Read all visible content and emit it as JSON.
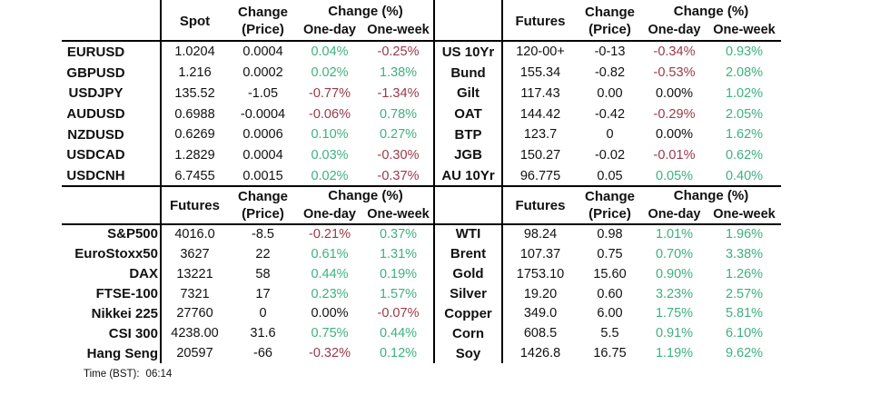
{
  "colors": {
    "positive": "#3eb181",
    "negative": "#97394a",
    "neutral": "#111111"
  },
  "headers": {
    "change_line1": "Change",
    "change_line2": "(Price)",
    "change_pct": "Change (%)",
    "one_day": "One-day",
    "one_week": "One-week"
  },
  "footer": {
    "time_label": "Time (BST):",
    "time_value": "06:14"
  },
  "chart_data": [
    {
      "type": "table",
      "title": "FX spot rates",
      "value_header": "Spot",
      "columns": [
        "",
        "Spot",
        "Change (Price)",
        "One-day",
        "One-week"
      ],
      "rows": [
        {
          "label": "EURUSD",
          "value": "1.0204",
          "change": "0.0004",
          "one_day": "0.04%",
          "one_week": "-0.25%"
        },
        {
          "label": "GBPUSD",
          "value": "1.216",
          "change": "0.0002",
          "one_day": "0.02%",
          "one_week": "1.38%"
        },
        {
          "label": "USDJPY",
          "value": "135.52",
          "change": "-1.05",
          "one_day": "-0.77%",
          "one_week": "-1.34%"
        },
        {
          "label": "AUDUSD",
          "value": "0.6988",
          "change": "-0.0004",
          "one_day": "-0.06%",
          "one_week": "0.78%"
        },
        {
          "label": "NZDUSD",
          "value": "0.6269",
          "change": "0.0006",
          "one_day": "0.10%",
          "one_week": "0.27%"
        },
        {
          "label": "USDCAD",
          "value": "1.2829",
          "change": "0.0004",
          "one_day": "0.03%",
          "one_week": "-0.30%"
        },
        {
          "label": "USDCNH",
          "value": "6.7455",
          "change": "0.0015",
          "one_day": "0.02%",
          "one_week": "-0.37%"
        }
      ]
    },
    {
      "type": "table",
      "title": "Bond futures",
      "value_header": "Futures",
      "columns": [
        "",
        "Futures",
        "Change (Price)",
        "One-day",
        "One-week"
      ],
      "rows": [
        {
          "label": "US 10Yr",
          "value": "120-00+",
          "change": "-0-13",
          "one_day": "-0.34%",
          "one_week": "0.93%"
        },
        {
          "label": "Bund",
          "value": "155.34",
          "change": "-0.82",
          "one_day": "-0.53%",
          "one_week": "2.08%"
        },
        {
          "label": "Gilt",
          "value": "117.43",
          "change": "0.00",
          "one_day": "0.00%",
          "one_week": "1.02%"
        },
        {
          "label": "OAT",
          "value": "144.42",
          "change": "-0.42",
          "one_day": "-0.29%",
          "one_week": "2.05%"
        },
        {
          "label": "BTP",
          "value": "123.7",
          "change": "0",
          "one_day": "0.00%",
          "one_week": "1.62%"
        },
        {
          "label": "JGB",
          "value": "150.27",
          "change": "-0.02",
          "one_day": "-0.01%",
          "one_week": "0.62%"
        },
        {
          "label": "AU 10Yr",
          "value": "96.775",
          "change": "0.05",
          "one_day": "0.05%",
          "one_week": "0.40%"
        }
      ]
    },
    {
      "type": "table",
      "title": "Equity index futures",
      "value_header": "Futures",
      "columns": [
        "",
        "Futures",
        "Change (Price)",
        "One-day",
        "One-week"
      ],
      "rows": [
        {
          "label": "S&P500",
          "value": "4016.0",
          "change": "-8.5",
          "one_day": "-0.21%",
          "one_week": "0.37%"
        },
        {
          "label": "EuroStoxx50",
          "value": "3627",
          "change": "22",
          "one_day": "0.61%",
          "one_week": "1.31%"
        },
        {
          "label": "DAX",
          "value": "13221",
          "change": "58",
          "one_day": "0.44%",
          "one_week": "0.19%"
        },
        {
          "label": "FTSE-100",
          "value": "7321",
          "change": "17",
          "one_day": "0.23%",
          "one_week": "1.57%"
        },
        {
          "label": "Nikkei 225",
          "value": "27760",
          "change": "0",
          "one_day": "0.00%",
          "one_week": "-0.07%"
        },
        {
          "label": "CSI 300",
          "value": "4238.00",
          "change": "31.6",
          "one_day": "0.75%",
          "one_week": "0.44%"
        },
        {
          "label": "Hang Seng",
          "value": "20597",
          "change": "-66",
          "one_day": "-0.32%",
          "one_week": "0.12%"
        }
      ]
    },
    {
      "type": "table",
      "title": "Commodity futures",
      "value_header": "Futures",
      "columns": [
        "",
        "Futures",
        "Change (Price)",
        "One-day",
        "One-week"
      ],
      "rows": [
        {
          "label": "WTI",
          "value": "98.24",
          "change": "0.98",
          "one_day": "1.01%",
          "one_week": "1.96%"
        },
        {
          "label": "Brent",
          "value": "107.37",
          "change": "0.75",
          "one_day": "0.70%",
          "one_week": "3.38%"
        },
        {
          "label": "Gold",
          "value": "1753.10",
          "change": "15.60",
          "one_day": "0.90%",
          "one_week": "1.26%"
        },
        {
          "label": "Silver",
          "value": "19.20",
          "change": "0.60",
          "one_day": "3.23%",
          "one_week": "2.57%"
        },
        {
          "label": "Copper",
          "value": "349.0",
          "change": "6.00",
          "one_day": "1.75%",
          "one_week": "5.81%"
        },
        {
          "label": "Corn",
          "value": "608.5",
          "change": "5.5",
          "one_day": "0.91%",
          "one_week": "6.10%"
        },
        {
          "label": "Soy",
          "value": "1426.8",
          "change": "16.75",
          "one_day": "1.19%",
          "one_week": "9.62%"
        }
      ]
    }
  ]
}
